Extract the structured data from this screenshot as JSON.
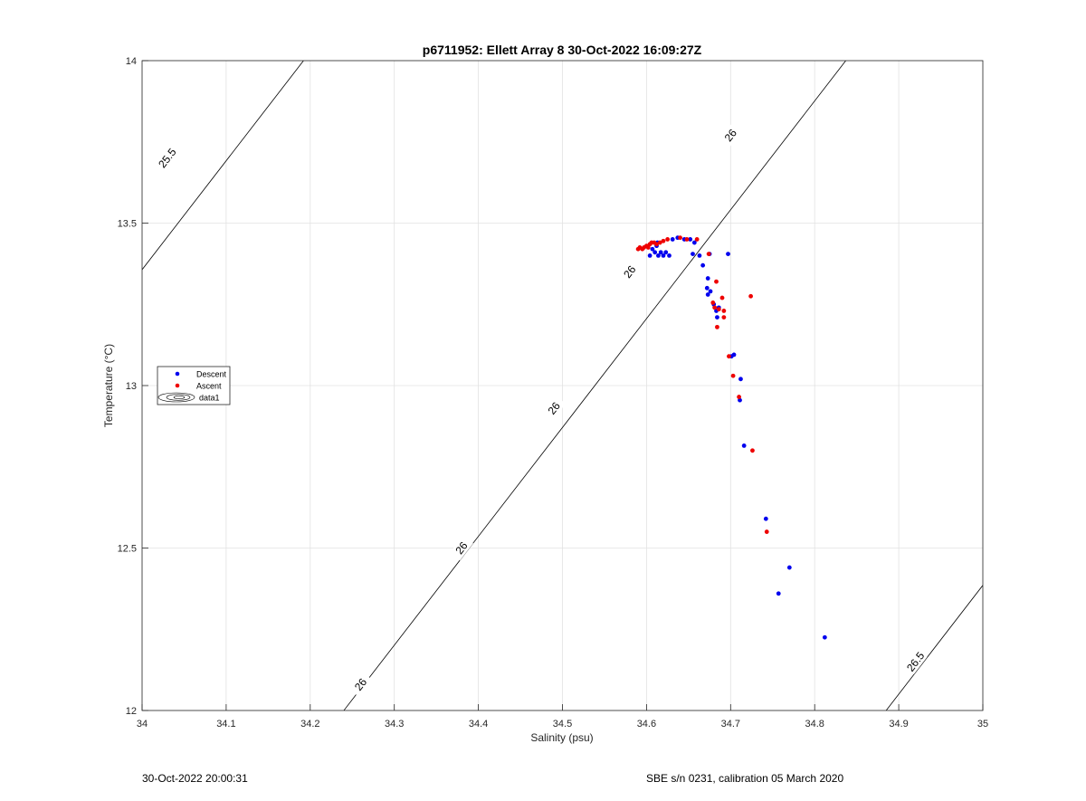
{
  "chart_data": {
    "type": "scatter",
    "title": "p6711952: Ellett Array 8 30-Oct-2022 16:09:27Z",
    "xlabel": "Salinity (psu)",
    "ylabel": "Temperature (°C)",
    "xlim": [
      34,
      35
    ],
    "ylim": [
      12,
      14
    ],
    "xticks": [
      34,
      34.1,
      34.2,
      34.3,
      34.4,
      34.5,
      34.6,
      34.7,
      34.8,
      34.9,
      35
    ],
    "xtick_labels": [
      "34",
      "34.1",
      "34.2",
      "34.3",
      "34.4",
      "34.5",
      "34.6",
      "34.7",
      "34.8",
      "34.9",
      "35"
    ],
    "yticks": [
      12,
      12.5,
      13,
      13.5,
      14
    ],
    "ytick_labels": [
      "12",
      "12.5",
      "13",
      "13.5",
      "14"
    ],
    "grid": true,
    "legend_placement": "middle-left",
    "legend": [
      {
        "label": "Descent",
        "marker": "dot",
        "color": "#0000ee"
      },
      {
        "label": "Ascent",
        "marker": "dot",
        "color": "#ee0000"
      },
      {
        "label": "data1",
        "marker": "contour"
      }
    ],
    "series": [
      {
        "name": "Descent",
        "color": "#0000ee",
        "points": [
          [
            34.604,
            13.4
          ],
          [
            34.607,
            13.42
          ],
          [
            34.61,
            13.41
          ],
          [
            34.612,
            13.43
          ],
          [
            34.614,
            13.4
          ],
          [
            34.617,
            13.41
          ],
          [
            34.62,
            13.4
          ],
          [
            34.623,
            13.41
          ],
          [
            34.627,
            13.4
          ],
          [
            34.613,
            13.44
          ],
          [
            34.631,
            13.45
          ],
          [
            34.637,
            13.455
          ],
          [
            34.645,
            13.45
          ],
          [
            34.652,
            13.45
          ],
          [
            34.657,
            13.44
          ],
          [
            34.655,
            13.405
          ],
          [
            34.663,
            13.4
          ],
          [
            34.667,
            13.37
          ],
          [
            34.673,
            13.33
          ],
          [
            34.675,
            13.405
          ],
          [
            34.697,
            13.405
          ],
          [
            34.672,
            13.3
          ],
          [
            34.673,
            13.28
          ],
          [
            34.676,
            13.29
          ],
          [
            34.68,
            13.25
          ],
          [
            34.683,
            13.23
          ],
          [
            34.684,
            13.21
          ],
          [
            34.686,
            13.24
          ],
          [
            34.701,
            13.09
          ],
          [
            34.704,
            13.095
          ],
          [
            34.712,
            13.02
          ],
          [
            34.711,
            12.955
          ],
          [
            34.716,
            12.815
          ],
          [
            34.742,
            12.59
          ],
          [
            34.77,
            12.44
          ],
          [
            34.757,
            12.36
          ],
          [
            34.812,
            12.225
          ]
        ]
      },
      {
        "name": "Ascent",
        "color": "#ee0000",
        "points": [
          [
            34.59,
            13.42
          ],
          [
            34.592,
            13.425
          ],
          [
            34.595,
            13.42
          ],
          [
            34.597,
            13.425
          ],
          [
            34.6,
            13.43
          ],
          [
            34.602,
            13.425
          ],
          [
            34.604,
            13.435
          ],
          [
            34.606,
            13.44
          ],
          [
            34.609,
            13.44
          ],
          [
            34.612,
            13.435
          ],
          [
            34.616,
            13.44
          ],
          [
            34.62,
            13.445
          ],
          [
            34.625,
            13.45
          ],
          [
            34.64,
            13.455
          ],
          [
            34.648,
            13.45
          ],
          [
            34.66,
            13.45
          ],
          [
            34.674,
            13.405
          ],
          [
            34.683,
            13.32
          ],
          [
            34.679,
            13.255
          ],
          [
            34.681,
            13.24
          ],
          [
            34.686,
            13.235
          ],
          [
            34.69,
            13.27
          ],
          [
            34.692,
            13.23
          ],
          [
            34.692,
            13.21
          ],
          [
            34.684,
            13.18
          ],
          [
            34.724,
            13.275
          ],
          [
            34.698,
            13.09
          ],
          [
            34.703,
            13.03
          ],
          [
            34.71,
            12.965
          ],
          [
            34.726,
            12.8
          ],
          [
            34.743,
            12.55
          ]
        ]
      }
    ],
    "isopycnals": [
      {
        "sigma": "25.5",
        "label_positions": [
          [
            34.03,
            13.7
          ]
        ]
      },
      {
        "sigma": "26",
        "label_positions": [
          [
            34.26,
            12.08
          ],
          [
            34.38,
            12.5
          ],
          [
            34.49,
            12.93
          ],
          [
            34.58,
            13.35
          ],
          [
            34.7,
            13.77
          ]
        ]
      },
      {
        "sigma": "26.5",
        "label_positions": [
          [
            34.92,
            12.15
          ]
        ]
      }
    ],
    "isopycnal_slope_degC_per_psu": 3.35,
    "isopycnal_sigma_spacing_psu": 0.645
  },
  "footer": {
    "left": "30-Oct-2022 20:00:31",
    "right": "SBE s/n 0231, calibration 05 March 2020"
  }
}
